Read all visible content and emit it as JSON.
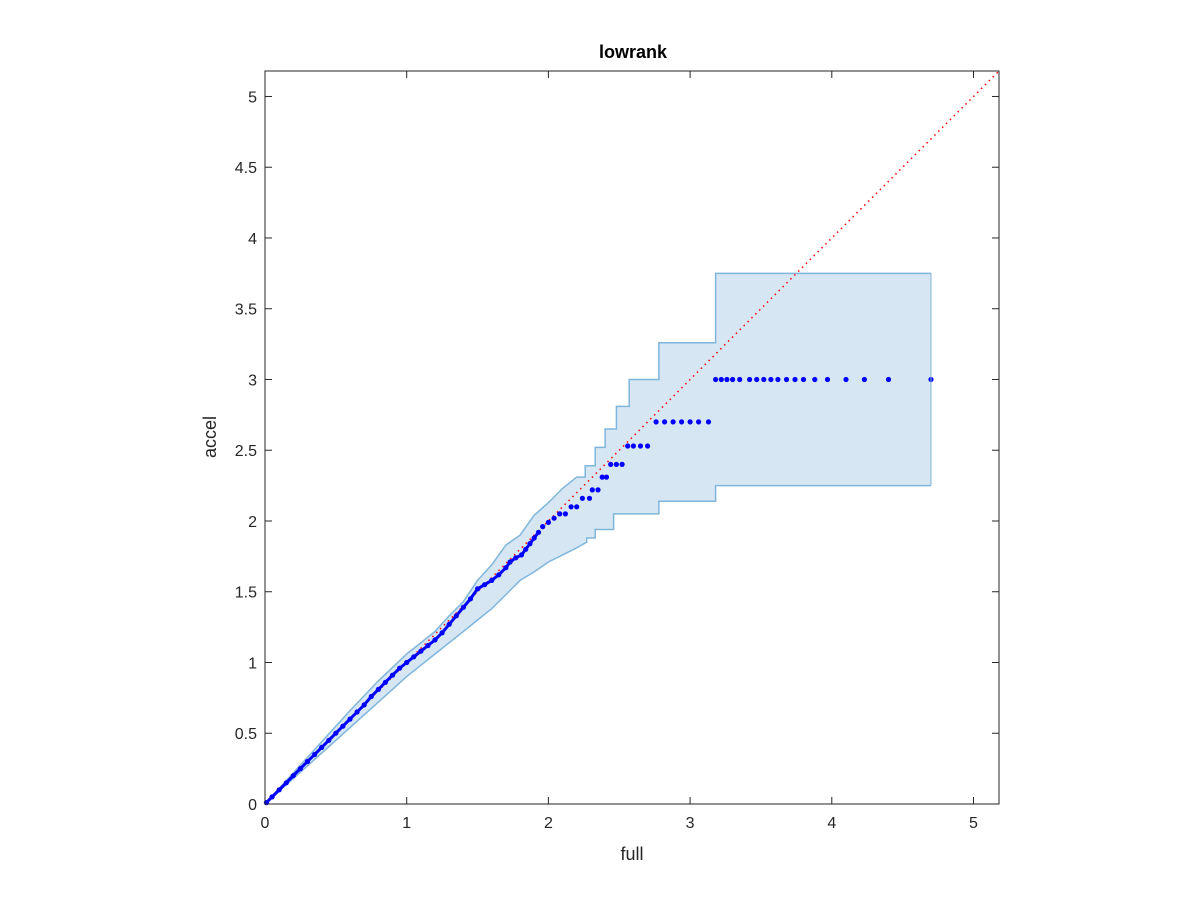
{
  "chart_data": {
    "type": "scatter",
    "title": "lowrank",
    "xlabel": "full",
    "ylabel": "accel",
    "xlim": [
      0,
      5.18
    ],
    "ylim": [
      0,
      5.18
    ],
    "xticks": [
      0,
      1,
      2,
      3,
      4,
      5
    ],
    "xtick_labels": [
      "0",
      "1",
      "2",
      "3",
      "4",
      "5"
    ],
    "yticks": [
      0,
      0.5,
      1,
      1.5,
      2,
      2.5,
      3,
      3.5,
      4,
      4.5,
      5
    ],
    "ytick_labels": [
      "0",
      "0.5",
      "1",
      "1.5",
      "2",
      "2.5",
      "3",
      "3.5",
      "4",
      "4.5",
      "5"
    ],
    "grid": false,
    "reference_line": {
      "style": "dotted",
      "color": "#ff0000",
      "from": [
        0,
        0
      ],
      "to": [
        5.18,
        5.18
      ]
    },
    "band": {
      "color": "#d6e6f3",
      "edge_color": "#7fb6dc",
      "upper": [
        [
          0,
          0
        ],
        [
          0.2,
          0.22
        ],
        [
          0.4,
          0.44
        ],
        [
          0.6,
          0.66
        ],
        [
          0.8,
          0.87
        ],
        [
          1.0,
          1.06
        ],
        [
          1.1,
          1.14
        ],
        [
          1.2,
          1.22
        ],
        [
          1.3,
          1.33
        ],
        [
          1.4,
          1.43
        ],
        [
          1.5,
          1.58
        ],
        [
          1.6,
          1.69
        ],
        [
          1.65,
          1.76
        ],
        [
          1.7,
          1.83
        ],
        [
          1.8,
          1.9
        ],
        [
          1.85,
          1.97
        ],
        [
          1.9,
          2.04
        ],
        [
          2.0,
          2.13
        ],
        [
          2.1,
          2.23
        ],
        [
          2.2,
          2.31
        ],
        [
          2.26,
          2.31
        ],
        [
          2.26,
          2.39
        ],
        [
          2.33,
          2.39
        ],
        [
          2.33,
          2.52
        ],
        [
          2.4,
          2.52
        ],
        [
          2.4,
          2.65
        ],
        [
          2.48,
          2.65
        ],
        [
          2.48,
          2.81
        ],
        [
          2.57,
          2.81
        ],
        [
          2.57,
          3.0
        ],
        [
          2.78,
          3.0
        ],
        [
          2.78,
          3.26
        ],
        [
          3.18,
          3.26
        ],
        [
          3.18,
          3.75
        ],
        [
          4.7,
          3.75
        ]
      ],
      "lower": [
        [
          0,
          0
        ],
        [
          0.2,
          0.18
        ],
        [
          0.4,
          0.36
        ],
        [
          0.6,
          0.54
        ],
        [
          0.8,
          0.72
        ],
        [
          1.0,
          0.9
        ],
        [
          1.2,
          1.06
        ],
        [
          1.4,
          1.22
        ],
        [
          1.5,
          1.3
        ],
        [
          1.6,
          1.38
        ],
        [
          1.7,
          1.48
        ],
        [
          1.8,
          1.58
        ],
        [
          1.9,
          1.64
        ],
        [
          2.0,
          1.71
        ],
        [
          2.1,
          1.76
        ],
        [
          2.2,
          1.81
        ],
        [
          2.27,
          1.85
        ],
        [
          2.27,
          1.88
        ],
        [
          2.33,
          1.88
        ],
        [
          2.33,
          1.94
        ],
        [
          2.46,
          1.94
        ],
        [
          2.46,
          2.05
        ],
        [
          2.78,
          2.05
        ],
        [
          2.78,
          2.14
        ],
        [
          3.18,
          2.14
        ],
        [
          3.18,
          2.25
        ],
        [
          4.7,
          2.25
        ]
      ]
    },
    "series": [
      {
        "color": "#0000ff",
        "points": [
          [
            0.01,
            0.01
          ],
          [
            0.05,
            0.05
          ],
          [
            0.1,
            0.1
          ],
          [
            0.15,
            0.15
          ],
          [
            0.2,
            0.2
          ],
          [
            0.25,
            0.25
          ],
          [
            0.3,
            0.3
          ],
          [
            0.35,
            0.35
          ],
          [
            0.4,
            0.4
          ],
          [
            0.45,
            0.45
          ],
          [
            0.5,
            0.5
          ],
          [
            0.55,
            0.55
          ],
          [
            0.6,
            0.6
          ],
          [
            0.65,
            0.65
          ],
          [
            0.7,
            0.7
          ],
          [
            0.75,
            0.76
          ],
          [
            0.8,
            0.81
          ],
          [
            0.85,
            0.86
          ],
          [
            0.9,
            0.91
          ],
          [
            0.95,
            0.96
          ],
          [
            1.0,
            1.0
          ],
          [
            1.05,
            1.04
          ],
          [
            1.1,
            1.08
          ],
          [
            1.15,
            1.12
          ],
          [
            1.2,
            1.16
          ],
          [
            1.25,
            1.21
          ],
          [
            1.3,
            1.27
          ],
          [
            1.35,
            1.33
          ],
          [
            1.4,
            1.39
          ],
          [
            1.45,
            1.45
          ],
          [
            1.5,
            1.52
          ],
          [
            1.55,
            1.55
          ],
          [
            1.6,
            1.58
          ],
          [
            1.65,
            1.62
          ],
          [
            1.7,
            1.67
          ],
          [
            1.73,
            1.71
          ],
          [
            1.77,
            1.74
          ],
          [
            1.81,
            1.76
          ],
          [
            1.84,
            1.8
          ],
          [
            1.87,
            1.84
          ],
          [
            1.9,
            1.88
          ],
          [
            1.93,
            1.92
          ],
          [
            1.96,
            1.96
          ],
          [
            2.0,
            1.99
          ],
          [
            2.04,
            2.02
          ],
          [
            2.08,
            2.05
          ],
          [
            2.12,
            2.05
          ],
          [
            2.16,
            2.1
          ],
          [
            2.2,
            2.1
          ],
          [
            2.24,
            2.16
          ],
          [
            2.29,
            2.16
          ],
          [
            2.31,
            2.22
          ],
          [
            2.35,
            2.22
          ],
          [
            2.38,
            2.31
          ],
          [
            2.41,
            2.31
          ],
          [
            2.44,
            2.4
          ],
          [
            2.48,
            2.4
          ],
          [
            2.52,
            2.4
          ],
          [
            2.56,
            2.53
          ],
          [
            2.6,
            2.53
          ],
          [
            2.65,
            2.53
          ],
          [
            2.7,
            2.53
          ],
          [
            2.76,
            2.7
          ],
          [
            2.82,
            2.7
          ],
          [
            2.88,
            2.7
          ],
          [
            2.94,
            2.7
          ],
          [
            3.0,
            2.7
          ],
          [
            3.06,
            2.7
          ],
          [
            3.13,
            2.7
          ],
          [
            3.18,
            3.0
          ],
          [
            3.22,
            3.0
          ],
          [
            3.26,
            3.0
          ],
          [
            3.3,
            3.0
          ],
          [
            3.35,
            3.0
          ],
          [
            3.42,
            3.0
          ],
          [
            3.47,
            3.0
          ],
          [
            3.52,
            3.0
          ],
          [
            3.57,
            3.0
          ],
          [
            3.62,
            3.0
          ],
          [
            3.68,
            3.0
          ],
          [
            3.74,
            3.0
          ],
          [
            3.8,
            3.0
          ],
          [
            3.88,
            3.0
          ],
          [
            3.97,
            3.0
          ],
          [
            4.1,
            3.0
          ],
          [
            4.23,
            3.0
          ],
          [
            4.4,
            3.0
          ],
          [
            4.7,
            3.0
          ]
        ]
      }
    ]
  }
}
